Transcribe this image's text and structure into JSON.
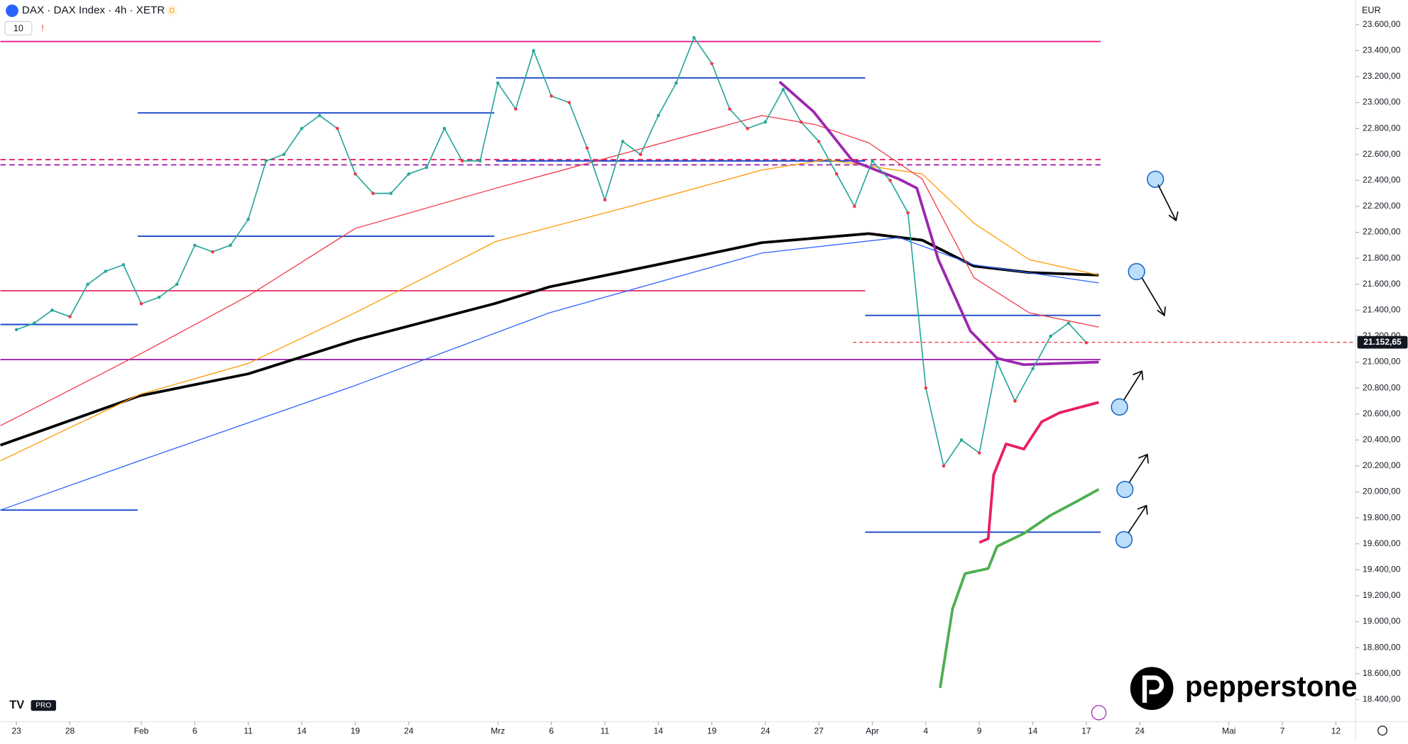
{
  "chart_data": {
    "type": "line",
    "title": "DAX · DAX Index · 4h · XETR",
    "currency": "EUR",
    "x": [
      0,
      1,
      2,
      3,
      4,
      5,
      6,
      7,
      8,
      9,
      10,
      11,
      12,
      13,
      14,
      15,
      16,
      17,
      18,
      19,
      20,
      21,
      22,
      23,
      24,
      25,
      26,
      27,
      28,
      29,
      30,
      31,
      32,
      33,
      34,
      35,
      36,
      37,
      38,
      39,
      40,
      41,
      42,
      43,
      44,
      45,
      46,
      47,
      48,
      49,
      50,
      51,
      52,
      53,
      54,
      55,
      56,
      57,
      58,
      59,
      60
    ],
    "values": [
      21250,
      21300,
      21400,
      21350,
      21600,
      21700,
      21750,
      21450,
      21500,
      21600,
      21900,
      21850,
      21900,
      22100,
      22550,
      22600,
      22800,
      22900,
      22800,
      22450,
      22300,
      22300,
      22450,
      22500,
      22800,
      22550,
      22550,
      23150,
      22950,
      23400,
      23050,
      23000,
      22650,
      22250,
      22700,
      22600,
      22900,
      23150,
      23500,
      23300,
      22950,
      22800,
      22850,
      23100,
      22850,
      22700,
      22450,
      22200,
      22550,
      22400,
      22150,
      20800,
      20200,
      20400,
      20300,
      21000,
      20700,
      20950,
      21200,
      21300,
      21150
    ],
    "color": "#26a69a",
    "series": [
      {
        "color": "#000000",
        "thick": true,
        "x": [
          -0.9,
          3.0,
          6.9,
          13.0,
          19.0,
          26.8,
          29.9,
          35.9,
          41.8,
          47.8,
          50.8,
          53.7,
          56.8,
          60.7
        ],
        "values": [
          20360,
          20550,
          20740,
          20910,
          21170,
          21450,
          21580,
          21750,
          21920,
          21990,
          21940,
          21740,
          21690,
          21670
        ]
      },
      {
        "color": "#2962ff",
        "thick": false,
        "x": [
          -0.9,
          6.9,
          19.0,
          29.9,
          41.8,
          49.5,
          53.7,
          60.7
        ],
        "values": [
          19860,
          20240,
          20820,
          21380,
          21840,
          21960,
          21750,
          21610
        ]
      },
      {
        "color": "#ff9800",
        "thick": false,
        "x": [
          -0.9,
          6.9,
          13.0,
          19.0,
          26.9,
          34.4,
          41.8,
          45.4,
          50.8,
          53.7,
          56.8,
          60.7
        ],
        "values": [
          20240,
          20750,
          20990,
          21380,
          21930,
          22200,
          22480,
          22560,
          22450,
          22070,
          21790,
          21670
        ]
      },
      {
        "color": "#f23645",
        "thick": false,
        "x": [
          -0.9,
          6.9,
          13.0,
          19.0,
          26.9,
          34.4,
          41.8,
          44.8,
          47.8,
          50.8,
          53.7,
          56.8,
          60.7
        ],
        "values": [
          20510,
          21060,
          21510,
          22030,
          22340,
          22620,
          22900,
          22830,
          22690,
          22410,
          21650,
          21380,
          21270
        ]
      },
      {
        "color": "#9c27b0",
        "thick": true,
        "x": [
          42.8,
          44.7,
          46.9,
          49.5,
          50.5,
          51.7,
          53.5,
          55.0,
          56.5,
          58.5,
          60.7
        ],
        "values": [
          23160,
          22930,
          22550,
          22410,
          22340,
          21790,
          21240,
          21030,
          20980,
          20990,
          21000
        ]
      },
      {
        "color": "#e91e63",
        "thick": true,
        "x": [
          54.0,
          54.5,
          54.8,
          55.5,
          56.5,
          57.5,
          58.5,
          60.7
        ],
        "values": [
          19610,
          19640,
          20130,
          20370,
          20330,
          20540,
          20610,
          20690
        ]
      },
      {
        "color": "#4caf50",
        "thick": true,
        "x": [
          51.8,
          52.5,
          53.2,
          54.5,
          55.0,
          56.5,
          58.0,
          59.5,
          60.7
        ],
        "values": [
          18490,
          19100,
          19370,
          19410,
          19580,
          19680,
          19820,
          19930,
          20020
        ]
      }
    ],
    "levels": [
      {
        "value": 23470,
        "color": "#e91e8c",
        "from": -0.9,
        "to": 60.8
      },
      {
        "value": 23190,
        "color": "#1848cc",
        "from": 26.9,
        "to": 47.6
      },
      {
        "value": 22920,
        "color": "#1848cc",
        "from": 6.8,
        "to": 26.8
      },
      {
        "value": 22550,
        "color": "#1848cc",
        "from": 26.9,
        "to": 47.6
      },
      {
        "value": 22560,
        "color": "#e91e63",
        "from": -0.9,
        "to": 60.8,
        "dashed": true
      },
      {
        "value": 22520,
        "color": "#9c27b0",
        "from": -0.9,
        "to": 60.8,
        "dashed": true
      },
      {
        "value": 21970,
        "color": "#1848cc",
        "from": 6.8,
        "to": 26.8
      },
      {
        "value": 21550,
        "color": "#f23669",
        "from": -0.9,
        "to": 47.6
      },
      {
        "value": 21360,
        "color": "#1848cc",
        "from": 47.6,
        "to": 60.8
      },
      {
        "value": 21290,
        "color": "#1848cc",
        "from": -0.9,
        "to": 6.8
      },
      {
        "value": 21020,
        "color": "#9c27b0",
        "from": -0.9,
        "to": 60.8
      },
      {
        "value": 19860,
        "color": "#1848cc",
        "from": -0.9,
        "to": 6.8
      },
      {
        "value": 19690,
        "color": "#1848cc",
        "from": 47.6,
        "to": 60.8
      }
    ],
    "last_price": 21152.65,
    "last_price_label": "21.152,65",
    "xlim": [
      -0.9,
      75.1
    ],
    "ylim": [
      18230,
      23790
    ],
    "xticks": [
      {
        "value": 0,
        "label": "23"
      },
      {
        "value": 3,
        "label": "28"
      },
      {
        "value": 7,
        "label": "Feb"
      },
      {
        "value": 10,
        "label": "6"
      },
      {
        "value": 13,
        "label": "11"
      },
      {
        "value": 16,
        "label": "14"
      },
      {
        "value": 19,
        "label": "19"
      },
      {
        "value": 22,
        "label": "24"
      },
      {
        "value": 27,
        "label": "Mrz"
      },
      {
        "value": 30,
        "label": "6"
      },
      {
        "value": 33,
        "label": "11"
      },
      {
        "value": 36,
        "label": "14"
      },
      {
        "value": 39,
        "label": "19"
      },
      {
        "value": 42,
        "label": "24"
      },
      {
        "value": 45,
        "label": "27"
      },
      {
        "value": 48,
        "label": "Apr"
      },
      {
        "value": 51,
        "label": "4"
      },
      {
        "value": 54,
        "label": "9"
      },
      {
        "value": 57,
        "label": "14"
      },
      {
        "value": 60,
        "label": "17"
      },
      {
        "value": 63,
        "label": "24"
      },
      {
        "value": 68,
        "label": "Mai"
      },
      {
        "value": 71,
        "label": "7"
      },
      {
        "value": 74,
        "label": "12"
      }
    ],
    "yticks": [
      {
        "value": 18400,
        "label": "18.400,00"
      },
      {
        "value": 18600,
        "label": "18.600,00"
      },
      {
        "value": 18800,
        "label": "18.800,00"
      },
      {
        "value": 19000,
        "label": "19.000,00"
      },
      {
        "value": 19200,
        "label": "19.200,00"
      },
      {
        "value": 19400,
        "label": "19.400,00"
      },
      {
        "value": 19600,
        "label": "19.600,00"
      },
      {
        "value": 19800,
        "label": "19.800,00"
      },
      {
        "value": 20000,
        "label": "20.000,00"
      },
      {
        "value": 20200,
        "label": "20.200,00"
      },
      {
        "value": 20400,
        "label": "20.400,00"
      },
      {
        "value": 20600,
        "label": "20.600,00"
      },
      {
        "value": 20800,
        "label": "20.800,00"
      },
      {
        "value": 21000,
        "label": "21.000,00"
      },
      {
        "value": 21200,
        "label": "21.200,00"
      },
      {
        "value": 21400,
        "label": "21.400,00"
      },
      {
        "value": 21600,
        "label": "21.600,00"
      },
      {
        "value": 21800,
        "label": "21.800,00"
      },
      {
        "value": 22000,
        "label": "22.000,00"
      },
      {
        "value": 22200,
        "label": "22.200,00"
      },
      {
        "value": 22400,
        "label": "22.400,00"
      },
      {
        "value": 22600,
        "label": "22.600,00"
      },
      {
        "value": 22800,
        "label": "22.800,00"
      },
      {
        "value": 23000,
        "label": "23.000,00"
      },
      {
        "value": 23200,
        "label": "23.200,00"
      },
      {
        "value": 23400,
        "label": "23.400,00"
      },
      {
        "value": 23600,
        "label": "23.600,00"
      }
    ]
  },
  "header": {
    "badge": "D",
    "count": "10",
    "alert": "!"
  },
  "logo": "pepperstone",
  "tv_badge": "PRO"
}
